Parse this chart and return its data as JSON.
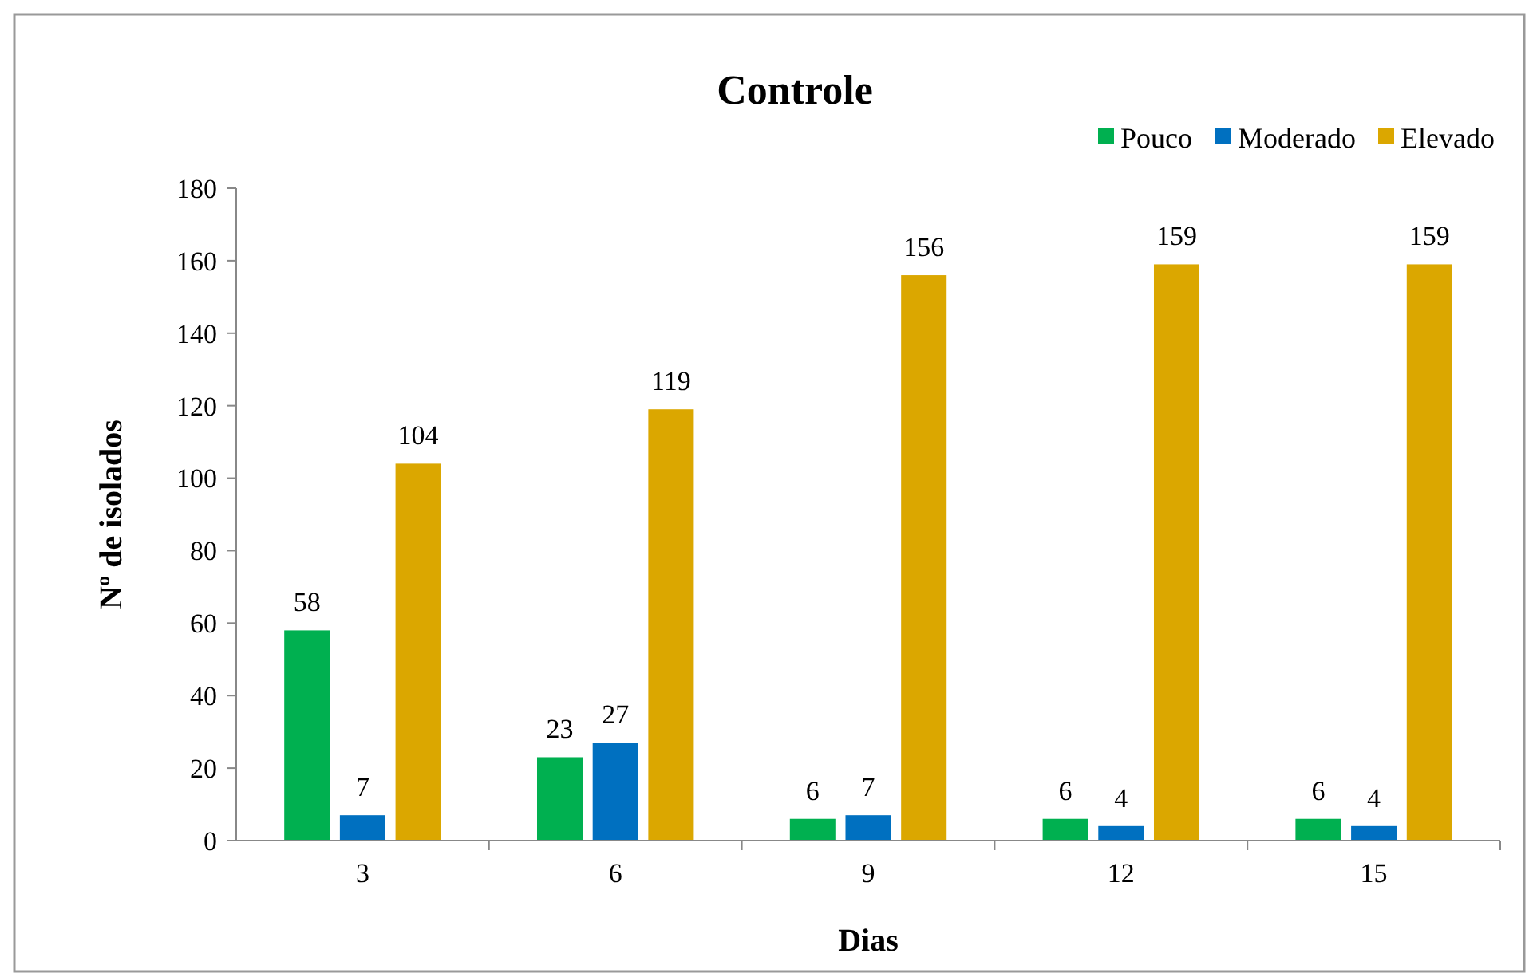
{
  "chart_data": {
    "type": "bar",
    "title": "Controle",
    "xlabel": "Dias",
    "ylabel": "Nº de isolados",
    "categories": [
      "3",
      "6",
      "9",
      "12",
      "15"
    ],
    "series": [
      {
        "name": "Pouco",
        "color": "#00b050",
        "values": [
          58,
          23,
          6,
          6,
          6
        ]
      },
      {
        "name": "Moderado",
        "color": "#0070c0",
        "values": [
          7,
          27,
          7,
          4,
          4
        ]
      },
      {
        "name": "Elevado",
        "color": "#dba700",
        "values": [
          104,
          119,
          156,
          159,
          159
        ]
      }
    ],
    "ylim": [
      0,
      180
    ],
    "yticks": [
      0,
      20,
      40,
      60,
      80,
      100,
      120,
      140,
      160,
      180
    ],
    "grid": false,
    "legend": "top right",
    "data_labels": true
  }
}
